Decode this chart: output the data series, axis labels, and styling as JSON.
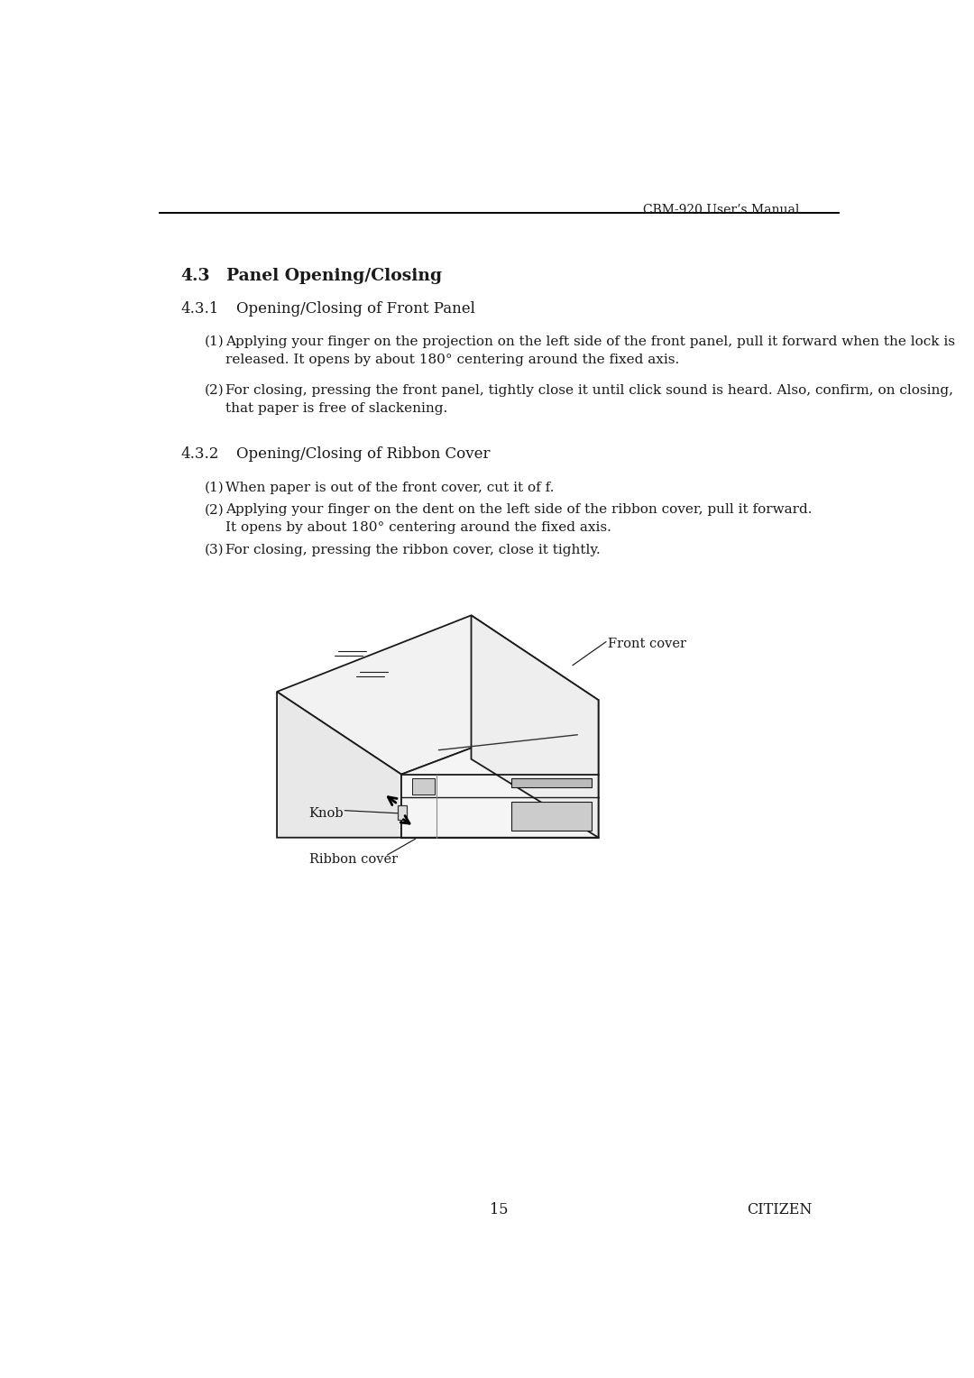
{
  "header_text": "CBM-920 User’s Manual",
  "section_43": "4.3",
  "section_43_title": "Panel Opening/Closing",
  "section_431": "4.3.1",
  "section_431_title": "Opening/Closing of Front Panel",
  "section_432": "4.3.2",
  "section_432_title": "Opening/Closing of Ribbon Cover",
  "item_1_1_num": "(1)",
  "item_1_1_text": "Applying your finger on the projection on the left side of the front panel, pull it forward when the lock is\nreleased. It opens by about 180° centering around the fixed axis.",
  "item_1_2_num": "(2)",
  "item_1_2_text": "For closing, pressing the front panel, tightly close it until click sound is heard. Also, confirm, on closing,\nthat paper is free of slackening.",
  "item_2_1_num": "(1)",
  "item_2_1_text": "When paper is out of the front cover, cut it of f.",
  "item_2_2_num": "(2)",
  "item_2_2_text": "Applying your finger on the dent on the left side of the ribbon cover, pull it forward.\nIt opens by about 180° centering around the fixed axis.",
  "item_2_3_num": "(3)",
  "item_2_3_text": "For closing, pressing the ribbon cover, close it tightly.",
  "label_front_cover": "Front cover",
  "label_knob": "Knob",
  "label_ribbon_cover": "Ribbon cover",
  "page_number": "15",
  "footer_right": "CITIZEN",
  "bg_color": "#ffffff",
  "text_color": "#1a1a1a",
  "line_color": "#1a1a1a"
}
